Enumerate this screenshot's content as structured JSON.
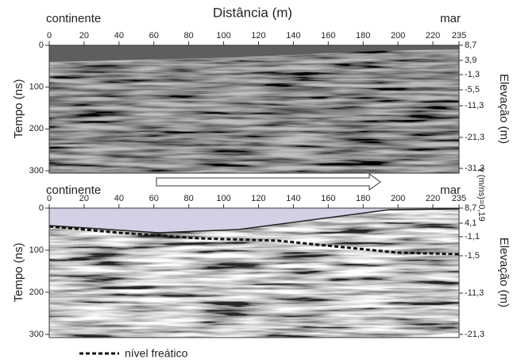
{
  "title": "Distância (m)",
  "panels": [
    {
      "left_label": "continente",
      "right_label": "mar",
      "x_ticks": [
        0,
        20,
        40,
        60,
        80,
        100,
        120,
        140,
        160,
        180,
        200,
        220,
        235
      ],
      "y_ticks": [
        0,
        100,
        200,
        300
      ],
      "y_label": "Tempo (ns)",
      "elevation_label": "Elevação (m)",
      "elevation_ticks": [
        {
          "value": 8.7,
          "label": "8,7"
        },
        {
          "value": 3.9,
          "label": "3,9"
        },
        {
          "value": -1.3,
          "label": "-1,3"
        },
        {
          "value": -5.5,
          "label": "-5,5"
        },
        {
          "value": -11.3,
          "label": "-11,3"
        },
        {
          "value": -21.3,
          "label": "-21,3"
        },
        {
          "value": -31.3,
          "label": "-31,3"
        }
      ]
    },
    {
      "left_label": "continente",
      "right_label": "mar",
      "x_ticks": [
        0,
        20,
        40,
        60,
        80,
        100,
        120,
        140,
        160,
        180,
        200,
        220,
        235
      ],
      "y_ticks": [
        0,
        100,
        200,
        300
      ],
      "y_label": "Tempo (ns)",
      "elevation_label": "Elevação (m)",
      "elevation_ticks": [
        {
          "value": 8.7,
          "label": "8,7"
        },
        {
          "value": 4.1,
          "label": "4,1"
        },
        {
          "value": -1.1,
          "label": "-1,1"
        },
        {
          "value": -1.5,
          "label": "-1,5"
        },
        {
          "value": -11.3,
          "label": "-11,3"
        },
        {
          "value": -21.3,
          "label": "-21,3"
        }
      ]
    }
  ],
  "velocity_label": "v (m/ns)=0,19",
  "legend": "nível freático"
}
